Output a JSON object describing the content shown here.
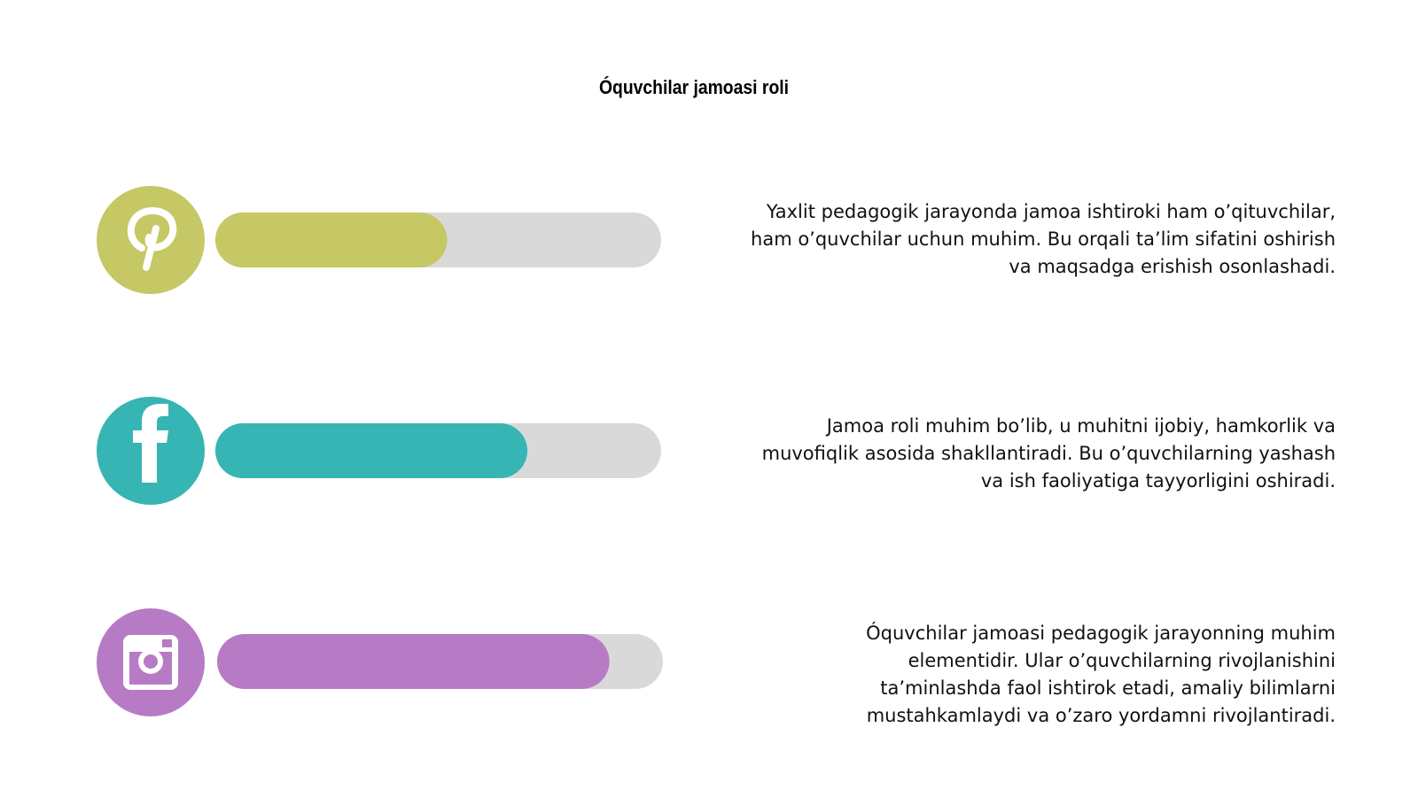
{
  "title": "Óquvchilar jamoasi roli",
  "range": [
    0,
    100
  ],
  "track_color": "#d9d9d9",
  "items": [
    {
      "color": "#c5c864",
      "value": 52,
      "lines": [
        "Yaxlit pedagogik jarayonda jamoa ishtiroki ham o’qituvchilar,",
        "ham o’quvchilar uchun muhim. Bu orqali ta’lim sifatini oshirish",
        "va maqsadga erishish osonlashadi."
      ]
    },
    {
      "color": "#36b5b4",
      "value": 70,
      "lines": [
        "Jamoa roli muhim bo’lib, u muhitni ijobiy, hamkorlik va",
        "muvofiqlik asosida shakllantiradi. Bu o’quvchilarning yashash",
        "va ish faoliyatiga tayyorligini oshiradi."
      ]
    },
    {
      "color": "#b77bc5",
      "value": 88,
      "lines": [
        "Óquvchilar jamoasi pedagogik jarayonning muhim",
        "elementidir. Ular o’quvchilarning rivojlanishini",
        "ta’minlashda faol ishtirok etadi, amaliy bilimlarni",
        "mustahkamlaydi va o’zaro yordamni rivojlantiradi."
      ]
    }
  ]
}
